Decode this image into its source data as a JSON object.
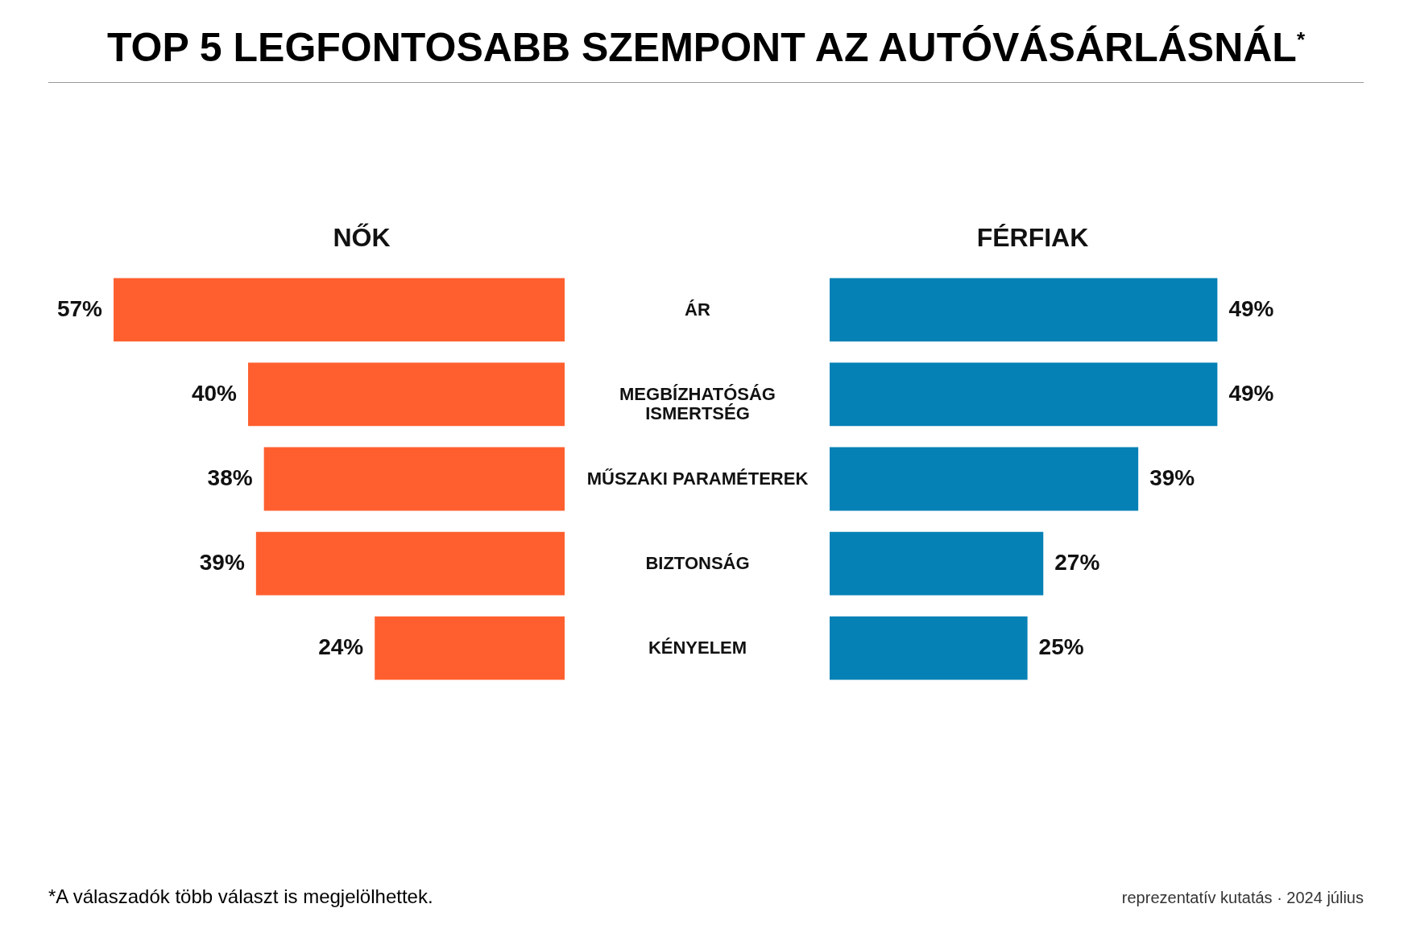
{
  "chart_data": [
    {
      "type": "bar",
      "orientation": "horizontal",
      "title": "TOP 5 LEGFONTOSABB SZEMPONT AZ AUTÓVÁSÁRLÁSNÁL$^{*}$",
      "categories": [
        "ÁR",
        "MEGBÍZHATÓSÁG\nISMERTSÉG",
        "MŰSZAKI PARAMÉTEREK",
        "BIZTONSÁG",
        "KÉNYELEM"
      ],
      "series": [
        {
          "name": "NŐK",
          "color": "#ff5f2e",
          "values": [
            57,
            40,
            38,
            39,
            24
          ],
          "value_labels": [
            "57%",
            "40%",
            "38%",
            "39%",
            "24%"
          ]
        }
      ],
      "annotations": [
        "*A válaszadók több választ is megjelölhettek.",
        "reprezentatív kutatás · 2024 július"
      ]
    },
    {
      "type": "bar",
      "orientation": "horizontal",
      "tick_labels": false,
      "categories": [
        null,
        null,
        null,
        null,
        null
      ],
      "series": [
        {
          "name": "FÉRFIAK",
          "color": "#0581b5",
          "values": [
            49,
            49,
            39,
            27,
            25
          ],
          "value_labels": [
            "49%",
            "49%",
            "39%",
            "27%",
            "25%"
          ]
        }
      ]
    }
  ]
}
